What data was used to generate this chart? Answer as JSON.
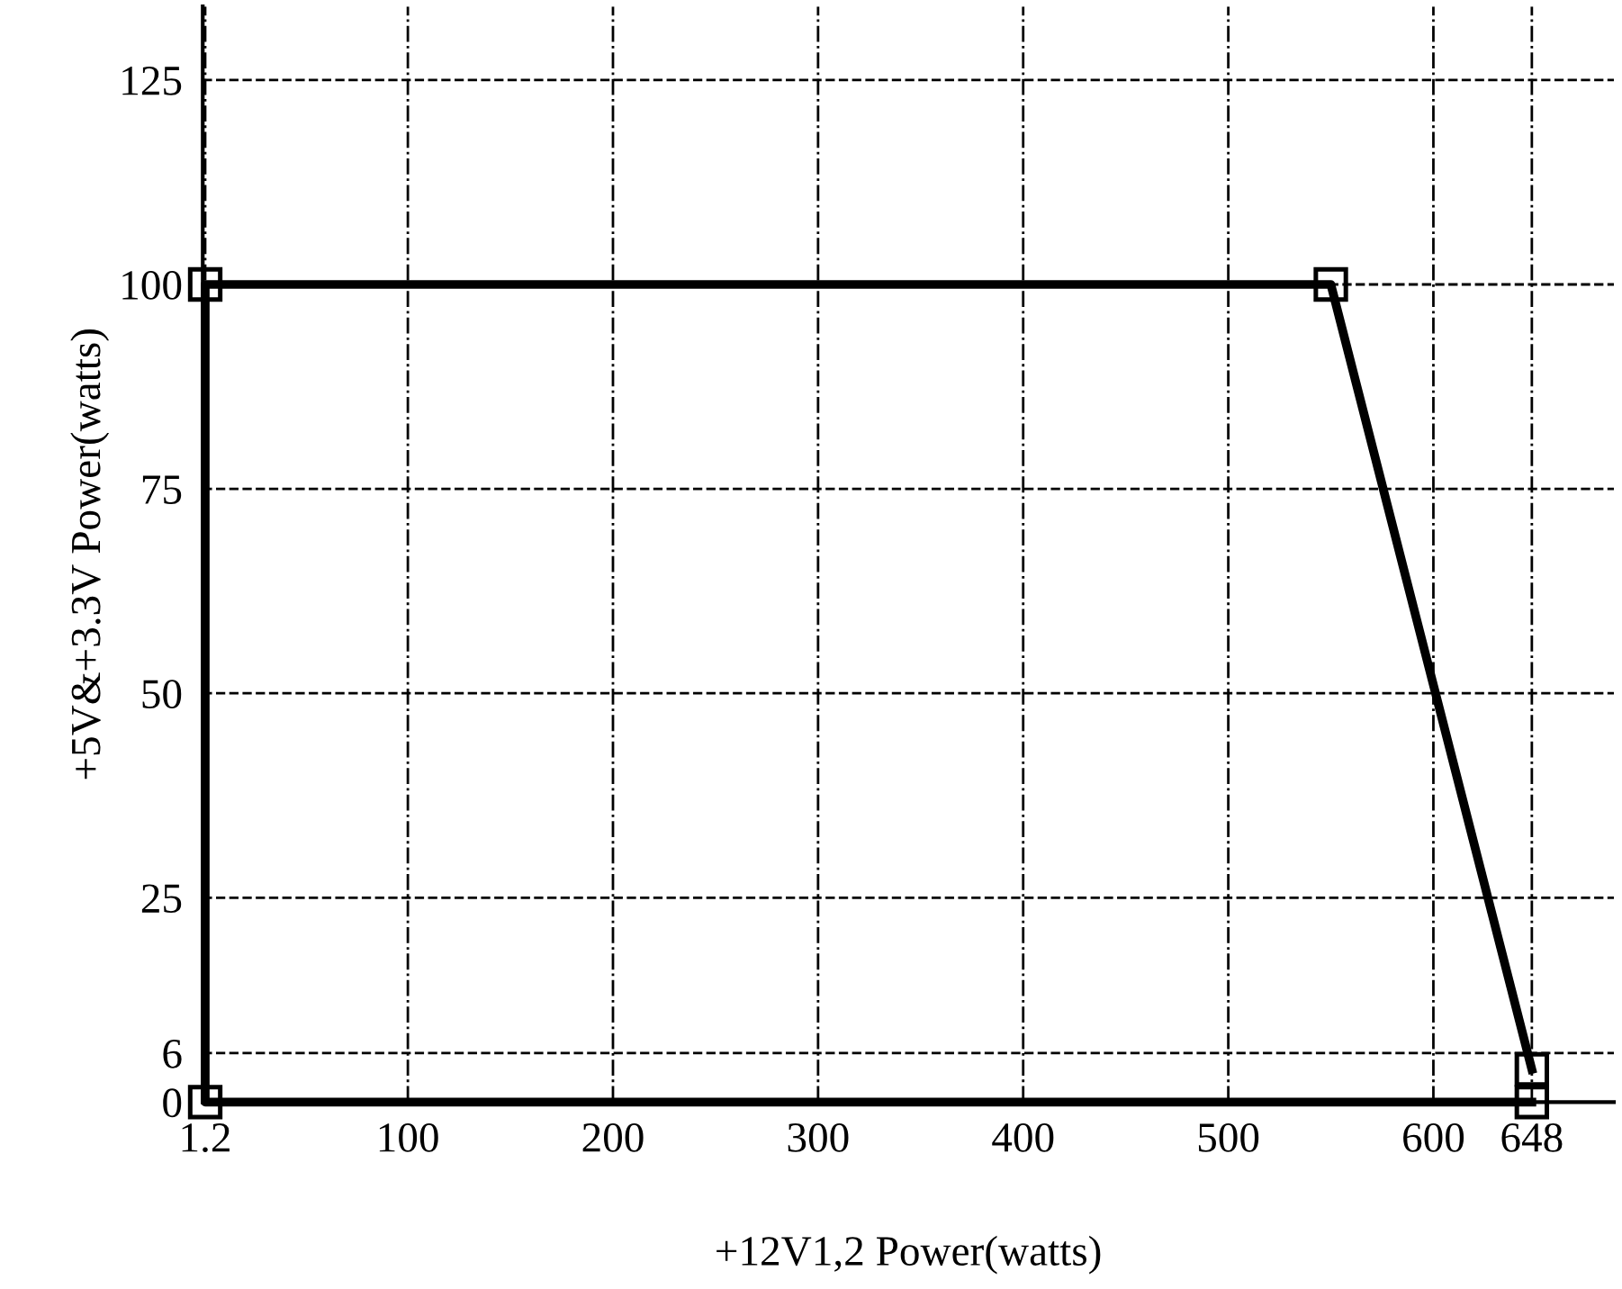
{
  "chart_data": {
    "type": "line",
    "xlabel": "+12V1,2 Power(watts)",
    "ylabel": "+5V&+3.3V Power(watts)",
    "x": [
      648,
      1.2,
      1.2,
      550,
      648
    ],
    "series": [
      {
        "color": "#000000",
        "values": [
          0,
          0,
          100,
          100,
          4
        ]
      }
    ],
    "xlim": [
      0,
      688
    ],
    "ylim": [
      0,
      134
    ],
    "xticks": [
      1.2,
      100,
      200,
      300,
      400,
      500,
      600,
      648
    ],
    "yticks": [
      0,
      6,
      25,
      50,
      75,
      100,
      125
    ],
    "grid": true,
    "marker": "square",
    "line_style": "solid",
    "legend": false
  }
}
